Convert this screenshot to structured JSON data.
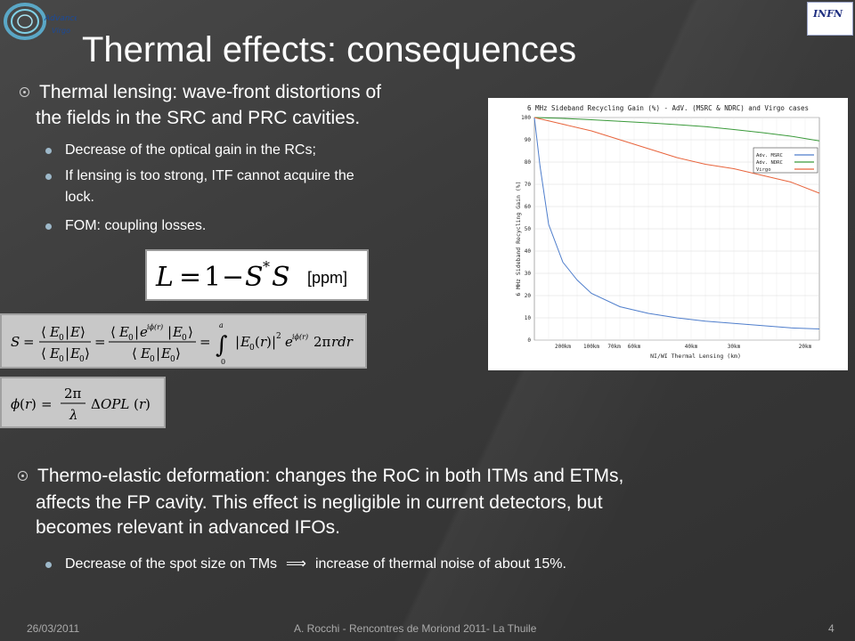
{
  "slide": {
    "title": "Thermal effects: consequences",
    "logo_left_text_1": "Advanced",
    "logo_left_text_2": "Virgo",
    "logo_right_text": "INFN"
  },
  "bullets": {
    "b1_line1": "Thermal lensing: wave-front distortions of",
    "b1_line2": "the fields in the SRC and PRC cavities.",
    "b1_sub1": "Decrease of the optical gain in the RCs;",
    "b1_sub2_line1": "If lensing is too strong, ITF cannot acquire the",
    "b1_sub2_line2": "lock.",
    "b1_sub3": "FOM: coupling losses.",
    "ppm": "[ppm]",
    "b2_line1": "Thermo-elastic deformation: changes the RoC in both ITMs and ETMs,",
    "b2_line2": "affects the FP cavity. This effect is negligible in current detectors, but",
    "b2_line3": "becomes relevant in advanced IFOs.",
    "b2_sub1_a": "Decrease of the spot size on TMs",
    "b2_sub1_b": "increase of thermal noise of about 15%."
  },
  "footer": {
    "date": "26/03/2011",
    "center": "A. Rocchi - Rencontres de Moriond 2011- La Thuile",
    "page": "4"
  },
  "chart_data": {
    "type": "line",
    "title": "6 MHz Sideband Recycling Gain (%) - AdV. (MSRC & NDRC) and Virgo cases",
    "xlabel": "NI/WI Thermal Lensing (km)",
    "ylabel": "6 MHz Sideband Recycling Gain (%)",
    "ylim": [
      0,
      100
    ],
    "yticks": [
      "0",
      "10",
      "20",
      "30",
      "40",
      "50",
      "60",
      "70",
      "80",
      "90",
      "100"
    ],
    "xtick_labels": [
      "200km",
      "100km",
      "70km",
      "60km",
      "40km",
      "30km",
      "20km"
    ],
    "xtick_positions": [
      0.1,
      0.2,
      0.28,
      0.35,
      0.55,
      0.7,
      0.95
    ],
    "legend_position": "right",
    "series": [
      {
        "name": "Adv. MSRC",
        "color": "#4f7ecc",
        "x": [
          0,
          0.02,
          0.05,
          0.1,
          0.15,
          0.2,
          0.3,
          0.4,
          0.5,
          0.6,
          0.7,
          0.8,
          0.9,
          1.0
        ],
        "y": [
          100,
          78,
          52,
          35,
          27,
          21,
          15,
          12,
          10,
          8.5,
          7.5,
          6.5,
          5.5,
          5
        ]
      },
      {
        "name": "Adv. NDRC",
        "color": "#3a9a3a",
        "x": [
          0,
          0.1,
          0.2,
          0.3,
          0.4,
          0.5,
          0.6,
          0.7,
          0.8,
          0.9,
          1.0
        ],
        "y": [
          100,
          99.6,
          99,
          98.3,
          97.6,
          96.8,
          95.9,
          94.6,
          93.2,
          91.6,
          89.5
        ]
      },
      {
        "name": "Virgo",
        "color": "#e8643c",
        "x": [
          0,
          0.1,
          0.2,
          0.3,
          0.4,
          0.5,
          0.6,
          0.7,
          0.8,
          0.9,
          1.0
        ],
        "y": [
          100,
          97,
          94,
          90,
          86,
          82,
          79,
          77,
          74,
          71,
          66
        ]
      }
    ]
  }
}
